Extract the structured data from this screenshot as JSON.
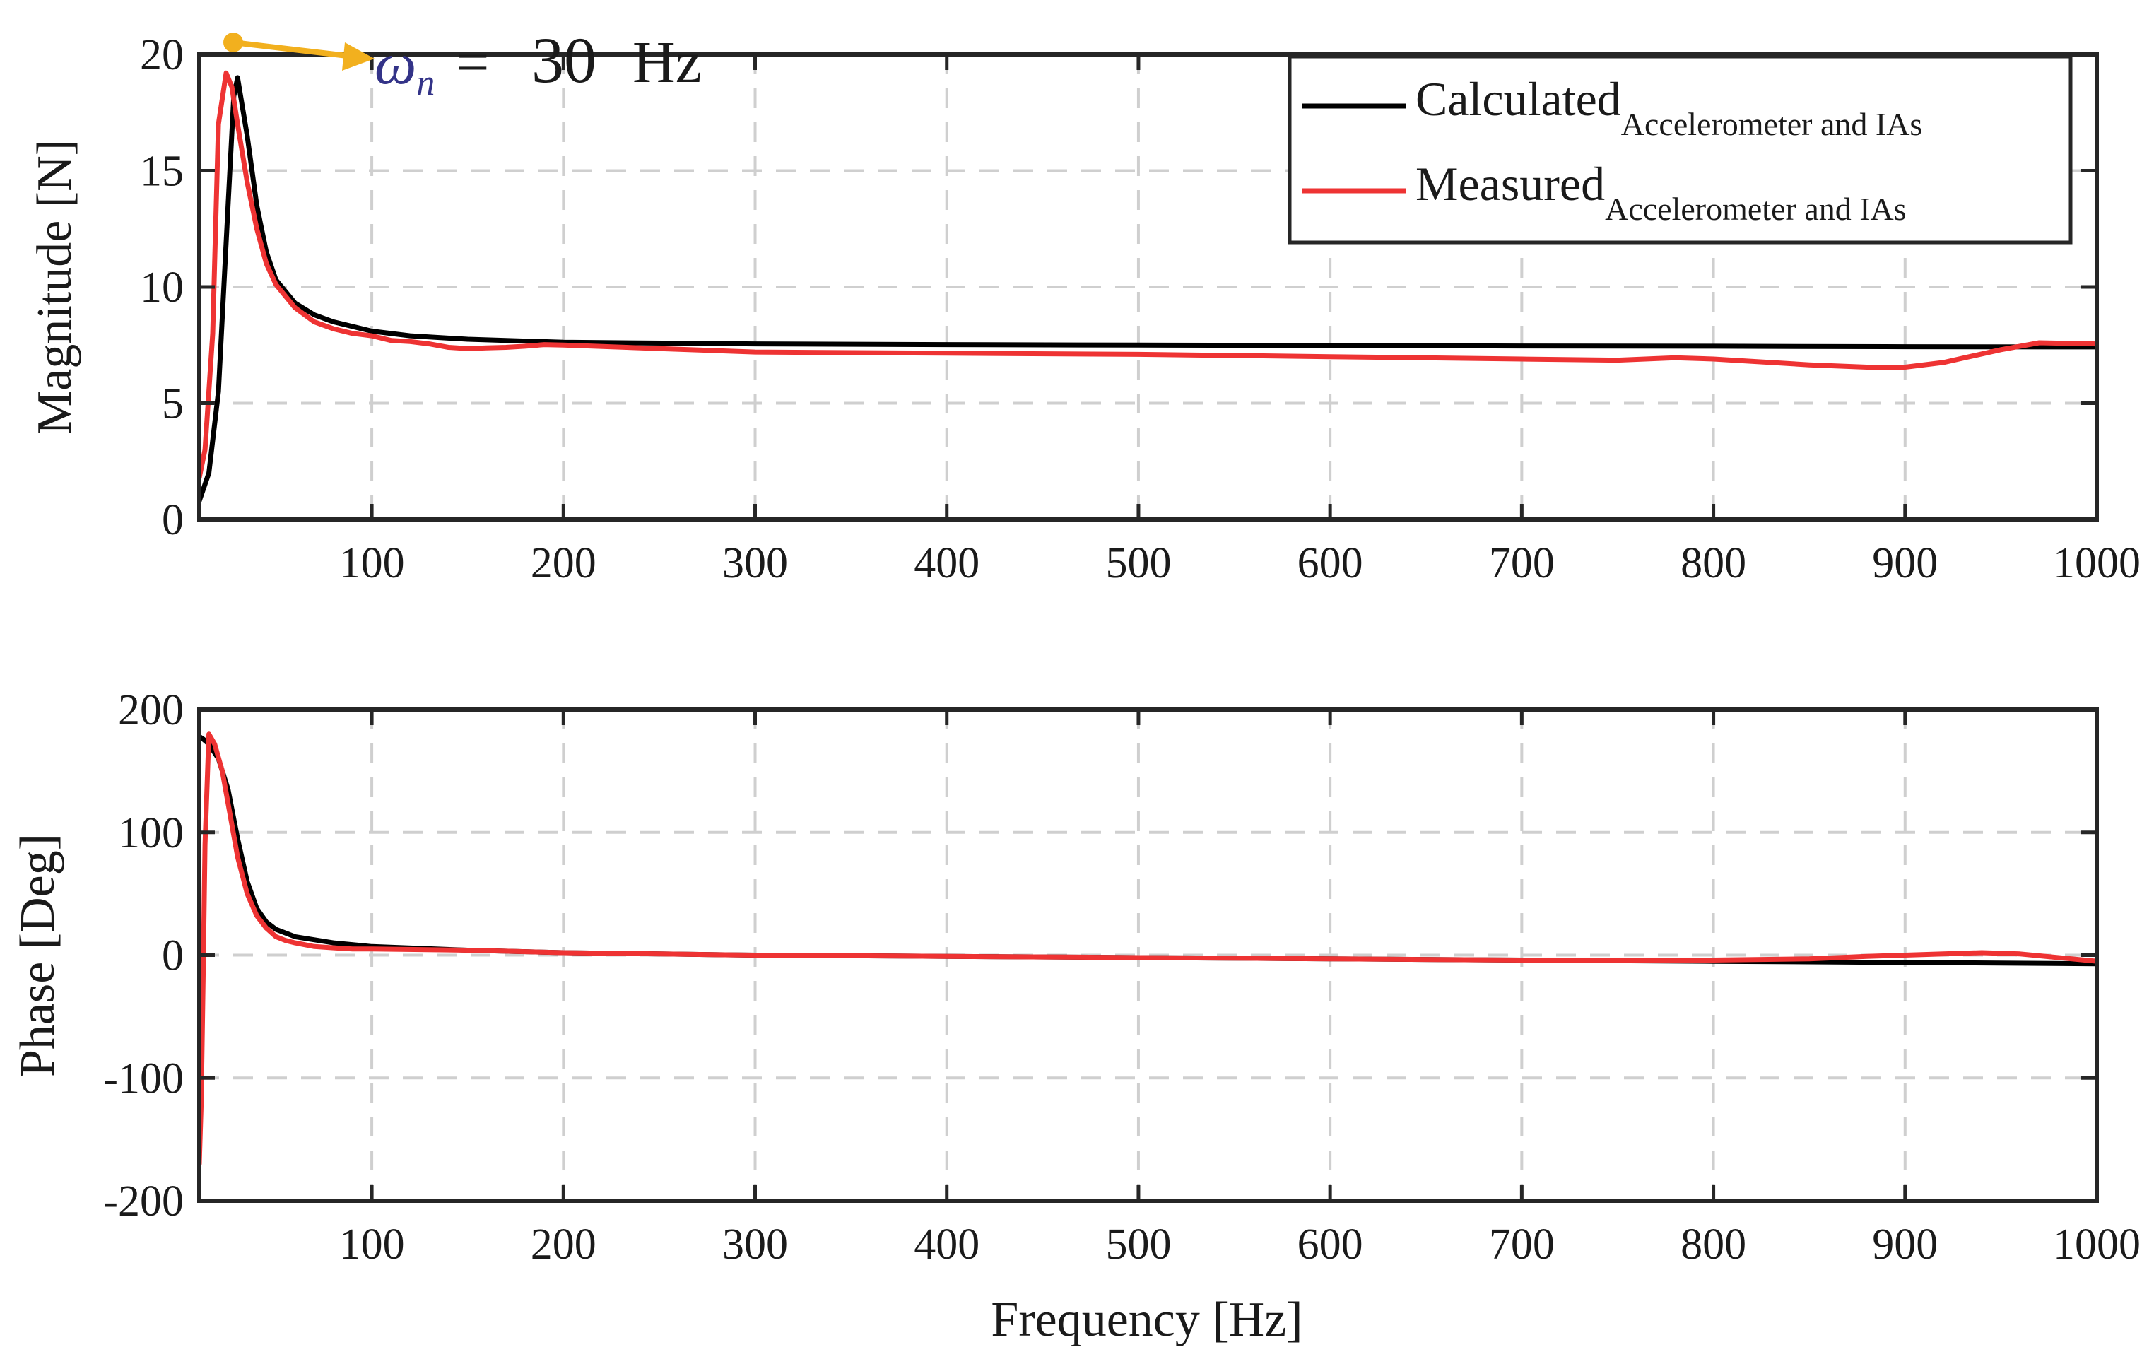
{
  "chart_data": [
    {
      "type": "line",
      "name": "magnitude",
      "title": "",
      "xlabel": "",
      "ylabel": "Magnitude [N]",
      "xlim": [
        10,
        1000
      ],
      "ylim": [
        0,
        20
      ],
      "xticks": [
        100,
        200,
        300,
        400,
        500,
        600,
        700,
        800,
        900,
        1000
      ],
      "yticks": [
        0,
        5,
        10,
        15,
        20
      ],
      "grid": true,
      "legend_position": "top-right",
      "annotation": {
        "x": 28,
        "y": 19.4,
        "omega": "ω",
        "subscript": "n",
        "equals": "=",
        "value": "30",
        "unit": "Hz",
        "marker_color": "#f2b01e",
        "omega_color": "#333388",
        "value_color": "#cc00cc",
        "unit_color": "#b22222"
      },
      "series": [
        {
          "name": "Calculated",
          "subscript": "Accelerometer and IAs",
          "color": "#000000",
          "x": [
            10,
            15,
            20,
            25,
            28,
            30,
            35,
            40,
            45,
            50,
            60,
            70,
            80,
            100,
            120,
            150,
            200,
            300,
            400,
            500,
            600,
            700,
            800,
            900,
            1000
          ],
          "y": [
            0.8,
            2.0,
            5.5,
            13.5,
            18.2,
            19.0,
            16.5,
            13.5,
            11.5,
            10.3,
            9.3,
            8.8,
            8.5,
            8.1,
            7.9,
            7.75,
            7.62,
            7.55,
            7.52,
            7.5,
            7.48,
            7.46,
            7.45,
            7.43,
            7.42
          ]
        },
        {
          "name": "Measured",
          "subscript": "Accelerometer and IAs",
          "color": "#ee3333",
          "x": [
            10,
            13,
            17,
            20,
            24,
            27,
            30,
            35,
            40,
            45,
            50,
            60,
            70,
            80,
            90,
            100,
            110,
            120,
            130,
            140,
            150,
            160,
            170,
            180,
            190,
            200,
            250,
            300,
            400,
            500,
            600,
            700,
            750,
            780,
            800,
            850,
            880,
            900,
            920,
            950,
            970,
            1000
          ],
          "y": [
            1.8,
            3.0,
            8.0,
            17.0,
            19.2,
            18.6,
            17.0,
            14.5,
            12.5,
            11.0,
            10.1,
            9.1,
            8.5,
            8.2,
            8.0,
            7.9,
            7.7,
            7.65,
            7.55,
            7.4,
            7.35,
            7.38,
            7.4,
            7.45,
            7.52,
            7.5,
            7.35,
            7.2,
            7.15,
            7.1,
            7.0,
            6.9,
            6.85,
            6.95,
            6.9,
            6.65,
            6.55,
            6.55,
            6.75,
            7.3,
            7.6,
            7.55
          ]
        }
      ]
    },
    {
      "type": "line",
      "name": "phase",
      "title": "",
      "xlabel": "Frequency [Hz]",
      "ylabel": "Phase [Deg]",
      "xlim": [
        10,
        1000
      ],
      "ylim": [
        -200,
        200
      ],
      "xticks": [
        100,
        200,
        300,
        400,
        500,
        600,
        700,
        800,
        900,
        1000
      ],
      "yticks": [
        -200,
        -100,
        0,
        100,
        200
      ],
      "grid": true,
      "series": [
        {
          "name": "Calculated",
          "color": "#000000",
          "x": [
            10,
            12,
            15,
            20,
            25,
            30,
            35,
            40,
            45,
            50,
            60,
            80,
            100,
            150,
            200,
            300,
            400,
            500,
            600,
            700,
            800,
            900,
            1000
          ],
          "y": [
            178,
            176,
            172,
            160,
            135,
            95,
            60,
            38,
            27,
            21,
            15,
            10,
            7,
            4,
            2,
            0,
            -1,
            -2,
            -3,
            -4,
            -5,
            -6,
            -7
          ]
        },
        {
          "name": "Measured",
          "color": "#ee3333",
          "x": [
            10,
            11,
            12,
            13,
            15,
            18,
            22,
            26,
            30,
            35,
            40,
            45,
            50,
            55,
            60,
            70,
            80,
            90,
            100,
            150,
            200,
            300,
            400,
            500,
            600,
            700,
            800,
            850,
            880,
            900,
            920,
            940,
            960,
            980,
            1000
          ],
          "y": [
            -170,
            -120,
            -20,
            90,
            180,
            172,
            150,
            115,
            80,
            50,
            32,
            22,
            15,
            12,
            10,
            7,
            6,
            5,
            5,
            4,
            2,
            0,
            -1,
            -2,
            -3,
            -4,
            -4,
            -3,
            -1,
            0,
            1,
            2,
            1,
            -2,
            -5
          ]
        }
      ]
    }
  ]
}
